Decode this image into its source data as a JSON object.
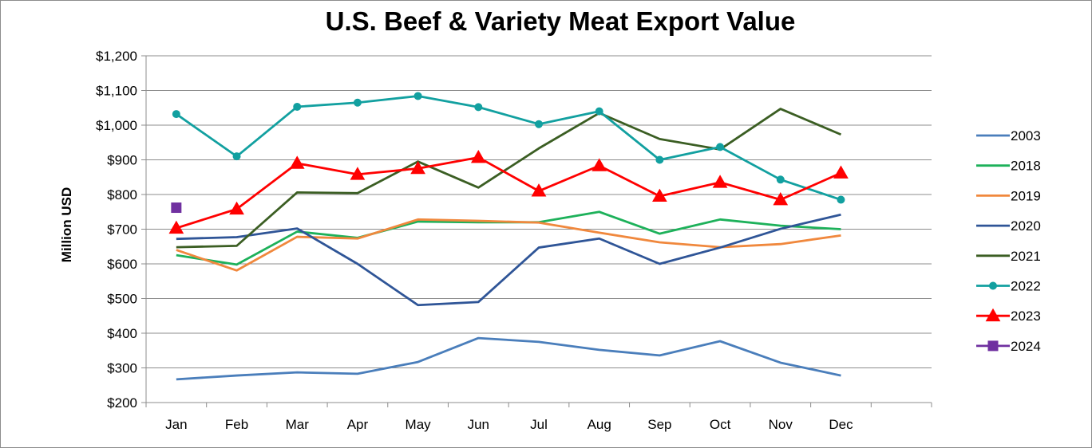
{
  "chart_data": {
    "type": "line",
    "title": "U.S. Beef & Variety Meat Export Value",
    "xlabel": "",
    "ylabel": "Million USD",
    "categories": [
      "Jan",
      "Feb",
      "Mar",
      "Apr",
      "May",
      "Jun",
      "Jul",
      "Aug",
      "Sep",
      "Oct",
      "Nov",
      "Dec"
    ],
    "ylim": [
      200,
      1200
    ],
    "yticks": [
      200,
      300,
      400,
      500,
      600,
      700,
      800,
      900,
      1000,
      1100,
      1200
    ],
    "ytick_labels": [
      "$200",
      "$300",
      "$400",
      "$500",
      "$600",
      "$700",
      "$800",
      "$900",
      "$1,000",
      "$1,100",
      "$1,200"
    ],
    "grid": true,
    "legend_position": "right",
    "series": [
      {
        "name": "2003",
        "color": "#4a7ebb",
        "marker": "none",
        "values": [
          267,
          278,
          287,
          283,
          317,
          386,
          375,
          352,
          336,
          377,
          315,
          278
        ]
      },
      {
        "name": "2018",
        "color": "#1db15a",
        "marker": "none",
        "values": [
          625,
          598,
          693,
          675,
          722,
          720,
          720,
          750,
          687,
          728,
          710,
          700
        ]
      },
      {
        "name": "2019",
        "color": "#f0883d",
        "marker": "none",
        "values": [
          640,
          581,
          678,
          673,
          728,
          724,
          719,
          690,
          662,
          648,
          657,
          682
        ]
      },
      {
        "name": "2020",
        "color": "#2f5597",
        "marker": "none",
        "values": [
          672,
          677,
          702,
          600,
          481,
          490,
          647,
          673,
          600,
          647,
          701,
          742
        ]
      },
      {
        "name": "2021",
        "color": "#3b5e23",
        "marker": "none",
        "values": [
          648,
          652,
          806,
          804,
          895,
          820,
          933,
          1035,
          960,
          930,
          1047,
          973
        ]
      },
      {
        "name": "2022",
        "color": "#12a0a0",
        "marker": "circle",
        "values": [
          1032,
          910,
          1053,
          1065,
          1084,
          1052,
          1003,
          1040,
          900,
          937,
          843,
          785
        ]
      },
      {
        "name": "2023",
        "color": "#ff0000",
        "marker": "triangle",
        "values": [
          703,
          758,
          890,
          858,
          875,
          907,
          810,
          883,
          795,
          835,
          785,
          862
        ]
      },
      {
        "name": "2024",
        "color": "#7030a0",
        "marker": "square",
        "values": [
          762,
          null,
          null,
          null,
          null,
          null,
          null,
          null,
          null,
          null,
          null,
          null
        ]
      }
    ]
  }
}
